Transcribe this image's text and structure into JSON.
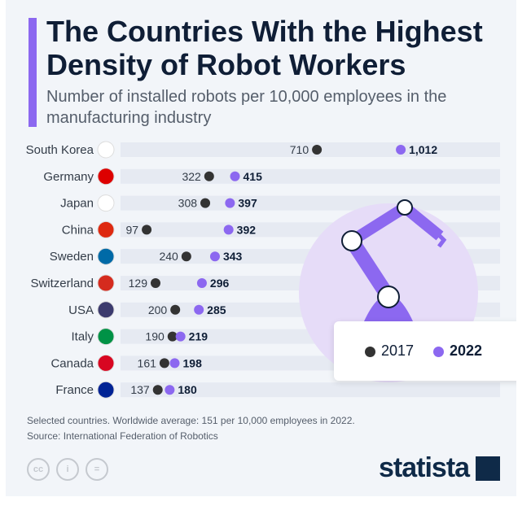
{
  "header": {
    "title": "The Countries With the Highest Density of Robot Workers",
    "subtitle": "Number of installed robots per 10,000 employees in the manufacturing industry"
  },
  "chart_data": {
    "type": "dumbbell",
    "title": "The Countries With the Highest Density of Robot Workers",
    "subtitle": "Number of installed robots per 10,000 employees in the manufacturing industry",
    "categories": [
      "South Korea",
      "Germany",
      "Japan",
      "China",
      "Sweden",
      "Switzerland",
      "USA",
      "Italy",
      "Canada",
      "France"
    ],
    "series": [
      {
        "name": "2017",
        "values": [
          710,
          322,
          308,
          97,
          240,
          129,
          200,
          190,
          161,
          137
        ],
        "labels": [
          "710",
          "322",
          "308",
          "97",
          "240",
          "129",
          "200",
          "190",
          "161",
          "137"
        ],
        "color": "#333333"
      },
      {
        "name": "2022",
        "values": [
          1012,
          415,
          397,
          392,
          343,
          296,
          285,
          219,
          198,
          180
        ],
        "labels": [
          "1,012",
          "415",
          "397",
          "392",
          "343",
          "296",
          "285",
          "219",
          "198",
          "180"
        ],
        "color": "#8c68f0"
      }
    ],
    "legend_position": "bottom-right"
  },
  "legend": {
    "items": [
      "2017",
      "2022"
    ]
  },
  "footer": {
    "note": "Selected countries. Worldwide average: 151 per 10,000 employees in 2022.",
    "source": "Source: International Federation of Robotics",
    "cc_icons": [
      "cc-icon",
      "by-icon",
      "nd-icon"
    ],
    "cc_labels": [
      "cc",
      "i",
      "="
    ],
    "logo": "statista"
  },
  "colors": {
    "accent": "#8c68f0",
    "dark": "#333333",
    "text": "#0f1e36",
    "track": "#e6eaf2"
  }
}
